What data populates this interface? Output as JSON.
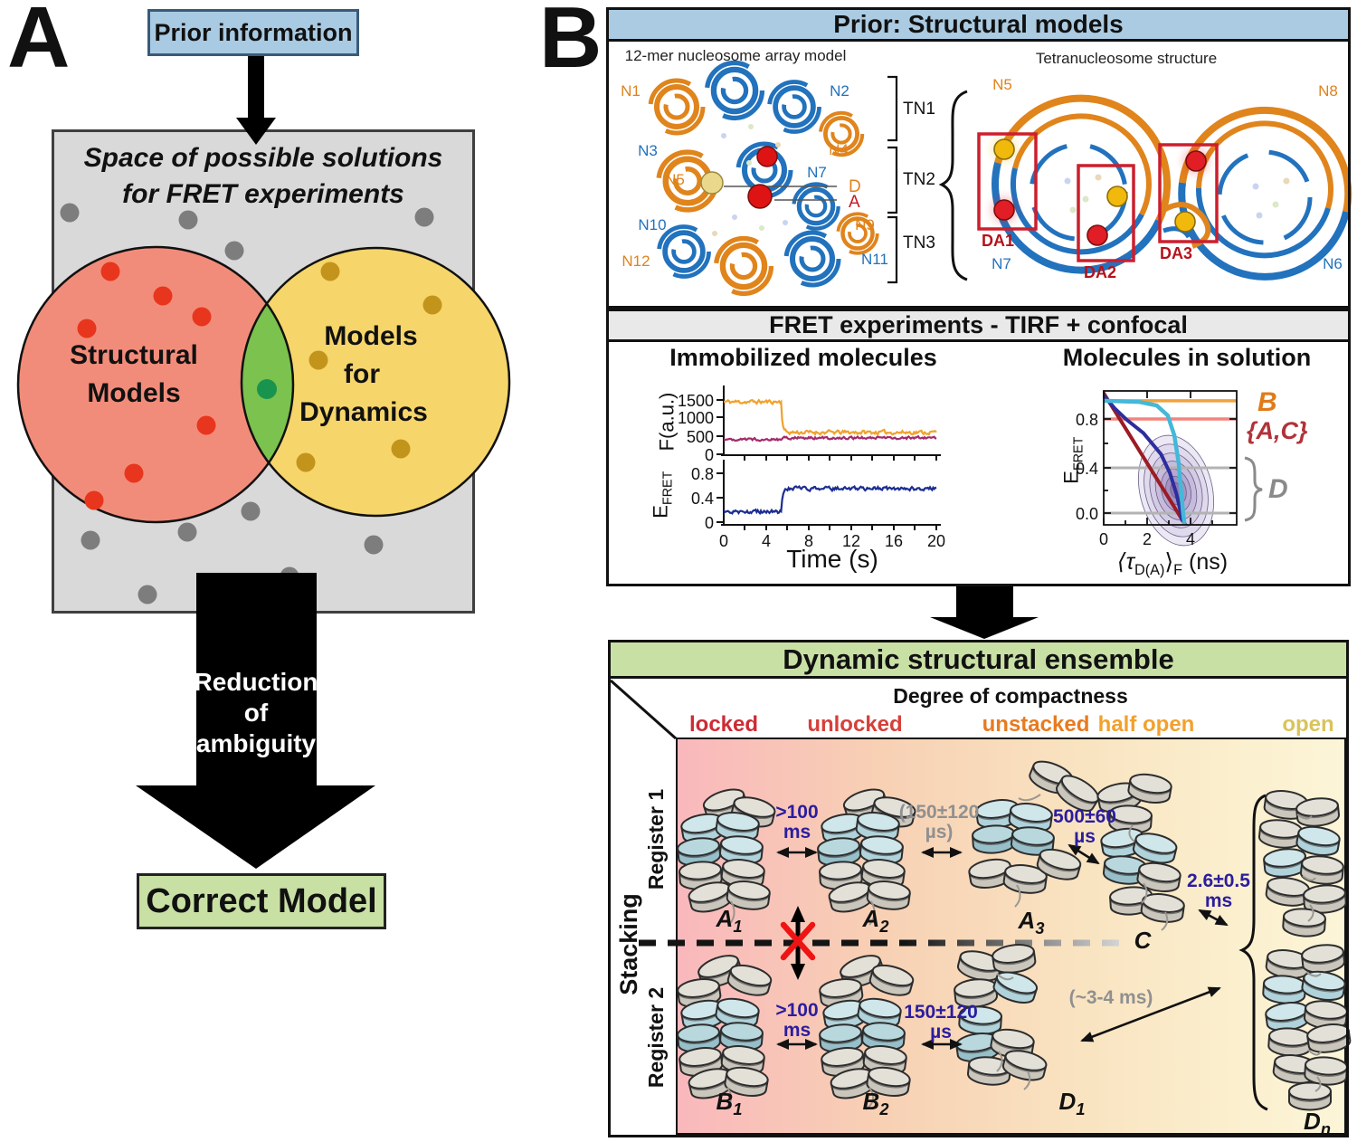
{
  "colors": {
    "blue_header": "#abcbe2",
    "gray_header": "#e9e9e9",
    "green_header": "#c9e0a5",
    "gray_box": "#d9d9d9",
    "salmon_circle": "#f28c7a",
    "yellow_circle": "#f6d56a",
    "green_lens": "#7cc24e",
    "green_dot": "#18944f",
    "red_dot": "#e8351d",
    "ochre_dot": "#c3941b",
    "gray_dot": "#7d7d7d",
    "dna_orange": "#e0821c",
    "dna_blue": "#2272bd",
    "da_red": "#c41824",
    "rate_blue": "#2b1d9e",
    "rate_gray": "#909090",
    "trace_orange": "#f0a22c",
    "trace_magenta": "#a32a6b",
    "trace_navy": "#1c2d91",
    "line_static_red": "#9c1b24",
    "line_cyan": "#45b8d8",
    "line_navy": "#2d2d9f",
    "line_salmon": "#f4837d",
    "line_orange": "#f0a23c"
  },
  "panel_a": {
    "letter": "A",
    "prior_box_label": "Prior information",
    "space_title_1": "Space of possible solutions",
    "space_title_2": "for FRET experiments",
    "left_circle_1": "Structural",
    "left_circle_2": "Models",
    "right_circle_1": "Models",
    "right_circle_2": "for",
    "right_circle_3": "Dynamics",
    "arrow_text_1": "Reduction",
    "arrow_text_2": "of",
    "arrow_text_3": "ambiguity",
    "correct_box_label": "Correct Model"
  },
  "panel_b": {
    "letter": "B",
    "prior": {
      "header": "Prior: Structural models",
      "left_caption": "12-mer nucleosome array model",
      "right_caption": "Tetranucleosome structure",
      "array_labels": [
        {
          "text": "N1"
        },
        {
          "text": "N2"
        },
        {
          "text": "N3"
        },
        {
          "text": "N4"
        },
        {
          "text": "N5"
        },
        {
          "text": "N7"
        },
        {
          "text": "N10"
        },
        {
          "text": "N9"
        },
        {
          "text": "N12"
        },
        {
          "text": "N11"
        }
      ],
      "tn_labels": [
        "TN1",
        "TN2",
        "TN3"
      ],
      "donor_label": "D",
      "acceptor_label": "A",
      "tetra_labels": [
        {
          "text": "N5"
        },
        {
          "text": "N8"
        },
        {
          "text": "N7"
        },
        {
          "text": "N6"
        }
      ],
      "da_labels": [
        "DA1",
        "DA2",
        "DA3"
      ]
    },
    "fret": {
      "header": "FRET experiments - TIRF + confocal",
      "tirf_title": "Immobilized molecules",
      "confocal_title": "Molecules in solution",
      "f_axis_label": "F(a.u.)",
      "efret_base": "E",
      "efret_sub": "FRET",
      "time_label": "Time (s)",
      "f_ticks": [
        "1500",
        "1000",
        "500",
        "0"
      ],
      "e_ticks": [
        "0.8",
        "0.4",
        "0"
      ],
      "time_ticks": [
        "0",
        "4",
        "8",
        "12",
        "16",
        "20"
      ],
      "tau_ticks": [
        "0",
        "2",
        "4"
      ],
      "sol_e_ticks": [
        "0.8",
        "0.4",
        "0.0"
      ],
      "tau_label": {
        "pre": "⟨τ",
        "sub1": "D(A)",
        "mid": "⟩",
        "sub2": "F",
        "post": " (ns)"
      },
      "species_b": "B",
      "species_ac": "{A,C}",
      "species_d": "D"
    },
    "ensemble": {
      "header": "Dynamic structural ensemble",
      "compactness_title": "Degree of compactness",
      "categories": [
        {
          "label": "locked",
          "color": "#cd2b35"
        },
        {
          "label": "unlocked",
          "color": "#d6403a"
        },
        {
          "label": "unstacked",
          "color": "#e87a1f"
        },
        {
          "label": "half open",
          "color": "#f2a12d"
        },
        {
          "label": "open",
          "color": "#d9c45c"
        }
      ],
      "register1": "Register 1",
      "register2": "Register 2",
      "stacking": "Stacking",
      "states": {
        "a1": {
          "base": "A",
          "sub": "1"
        },
        "a2": {
          "base": "A",
          "sub": "2"
        },
        "a3": {
          "base": "A",
          "sub": "3"
        },
        "c": {
          "base": "C",
          "sub": ""
        },
        "b1": {
          "base": "B",
          "sub": "1"
        },
        "b2": {
          "base": "B",
          "sub": "2"
        },
        "d1": {
          "base": "D",
          "sub": "1"
        },
        "dn": {
          "base": "D",
          "sub": "n"
        }
      },
      "rates": {
        "a1_a2": {
          "l1": ">100",
          "l2": "ms"
        },
        "a2_a3": {
          "l1": "(150±120",
          "l2": "µs)"
        },
        "a3_c": {
          "l1": "500±60",
          "l2": "µs"
        },
        "c_open": {
          "l1": "2.6±0.5",
          "l2": "ms"
        },
        "b1_b2": {
          "l1": ">100",
          "l2": "ms"
        },
        "b2_d1": {
          "l1": "150±120",
          "l2": "µs"
        },
        "d1_dn": {
          "l1": "(~3-4 ms)",
          "l2": ""
        }
      }
    }
  },
  "chart_data": [
    {
      "type": "line",
      "title": "Immobilized molecules",
      "xlabel": "Time (s)",
      "xlim": [
        0,
        20
      ],
      "xticks": [
        0,
        4,
        8,
        12,
        16,
        20
      ],
      "step_time_s": 5.4,
      "panels": [
        {
          "ylabel": "F(a.u.)",
          "ylim": [
            0,
            1750
          ],
          "yticks": [
            0,
            500,
            1000,
            1500
          ],
          "series": [
            {
              "name": "donor fluorescence",
              "color": "#f0a22c",
              "level_before": 1450,
              "level_after": 620,
              "noise": 85
            },
            {
              "name": "acceptor fluorescence",
              "color": "#a32a6b",
              "level_before": 430,
              "level_after": 470,
              "noise": 55
            }
          ]
        },
        {
          "ylabel": "EFRET",
          "ylim": [
            0,
            0.95
          ],
          "yticks": [
            0,
            0.4,
            0.8
          ],
          "series": [
            {
              "name": "FRET efficiency",
              "color": "#1c2d91",
              "level_before": 0.17,
              "level_after": 0.55,
              "noise": 0.05
            }
          ]
        }
      ]
    },
    {
      "type": "scatter-contour",
      "title": "Molecules in solution",
      "xlabel": "⟨τD(A)⟩F (ns)",
      "ylabel": "EFRET",
      "xlim": [
        0,
        6
      ],
      "ylim": [
        -0.12,
        1.05
      ],
      "xticks": [
        0,
        2,
        4
      ],
      "yticks": [
        0.0,
        0.4,
        0.8
      ],
      "guide_lines": [
        {
          "label": "B",
          "efret": 0.955,
          "color": "#f0a23c",
          "width": 3.5
        },
        {
          "label": "{A,C}",
          "efret": 0.8,
          "color": "#f4837d",
          "width": 3.5
        },
        {
          "label": "D",
          "efret": 0.385,
          "color": "#b3b3b3",
          "width": 3
        },
        {
          "label": "D",
          "efret": 0.0,
          "color": "#b3b3b3",
          "width": 3
        }
      ],
      "curves": [
        {
          "name": "static FRET line",
          "color": "#9c1b24",
          "width": 4,
          "points": [
            [
              0,
              1.02
            ],
            [
              3.8,
              -0.13
            ]
          ]
        },
        {
          "name": "dynamic FRET line slow",
          "color": "#2d2d9f",
          "width": 4,
          "points": [
            [
              0,
              1.0
            ],
            [
              0.5,
              0.89
            ],
            [
              1,
              0.8
            ],
            [
              1.8,
              0.68
            ],
            [
              2.6,
              0.5
            ],
            [
              3.0,
              0.34
            ],
            [
              3.3,
              0.16
            ],
            [
              3.45,
              0.04
            ],
            [
              3.55,
              -0.06
            ]
          ]
        },
        {
          "name": "dynamic FRET line fast",
          "color": "#45b8d8",
          "width": 4.5,
          "points": [
            [
              0,
              0.955
            ],
            [
              1.6,
              0.945
            ],
            [
              2.4,
              0.915
            ],
            [
              2.9,
              0.83
            ],
            [
              3.2,
              0.66
            ],
            [
              3.4,
              0.42
            ],
            [
              3.5,
              0.2
            ],
            [
              3.6,
              0.0
            ],
            [
              3.65,
              -0.08
            ]
          ]
        }
      ],
      "population_center": [
        3.3,
        0.13
      ]
    }
  ]
}
